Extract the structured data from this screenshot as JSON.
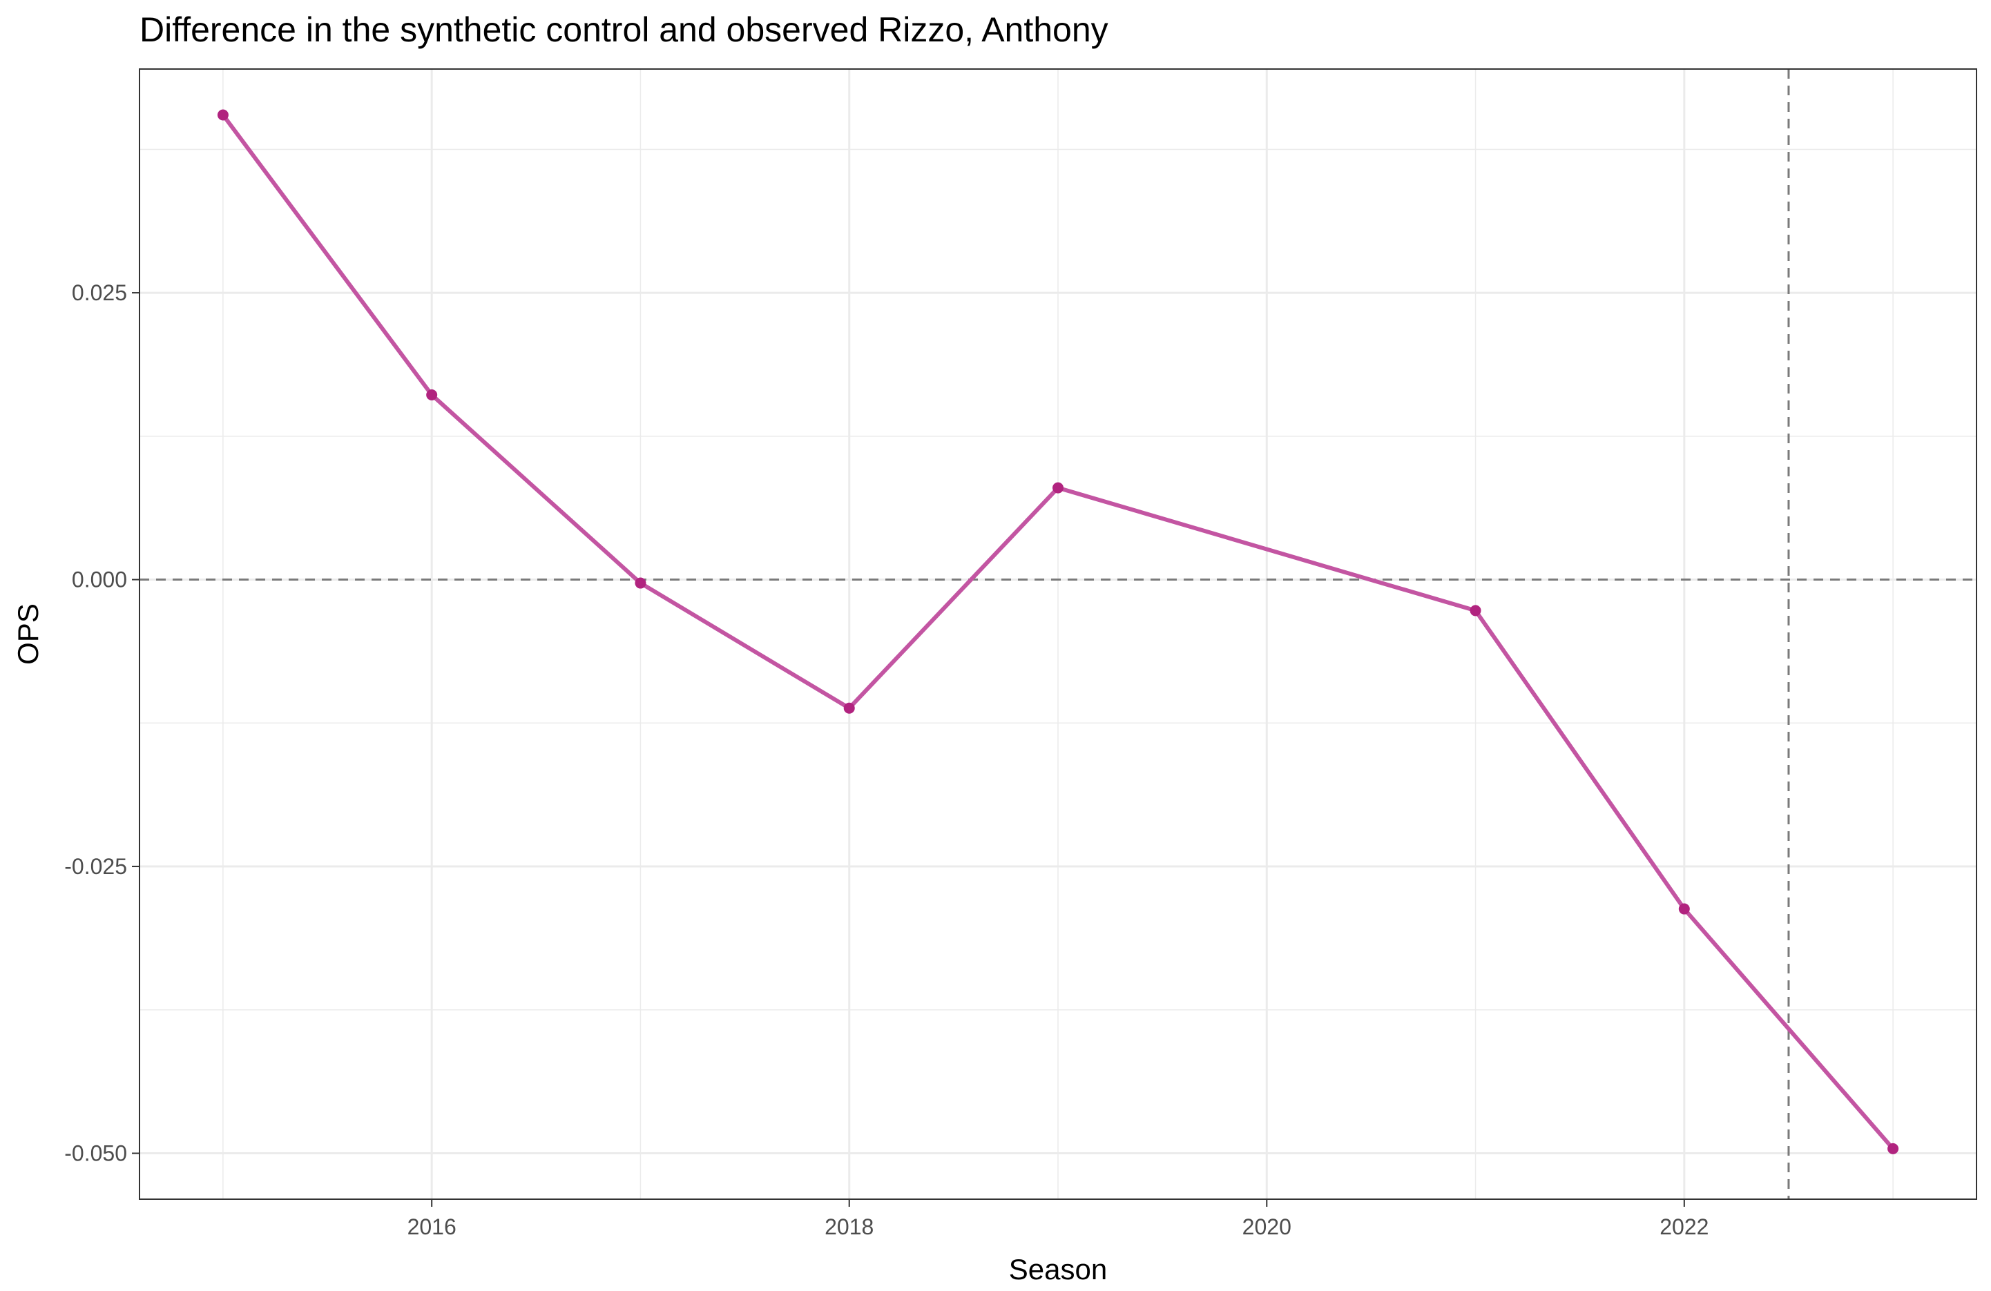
{
  "chart_data": {
    "type": "line",
    "title": "Difference in the synthetic control and observed Rizzo, Anthony",
    "xlabel": "Season",
    "ylabel": "OPS",
    "x": [
      2015,
      2016,
      2017,
      2018,
      2019,
      2021,
      2022,
      2023
    ],
    "series": [
      {
        "values": [
          0.0405,
          0.0161,
          -0.0003,
          -0.0112,
          0.008,
          -0.0027,
          -0.0287,
          -0.0496
        ]
      }
    ],
    "xlim": [
      2014.6,
      2023.4
    ],
    "ylim": [
      -0.054,
      0.0445
    ],
    "x_ticks": [
      2016,
      2018,
      2020,
      2022
    ],
    "x_tick_labels": [
      "2016",
      "2018",
      "2020",
      "2022"
    ],
    "y_ticks": [
      0.025,
      0.0,
      -0.025,
      -0.05
    ],
    "y_tick_labels": [
      "0.025",
      "0.000",
      "-0.025",
      "-0.050"
    ],
    "reference_lines": {
      "horizontal_y": 0.0,
      "vertical_x": 2022.5,
      "style": "dashed"
    },
    "grid": true,
    "colors": {
      "line": "#c355a2",
      "points": "#b1237f",
      "reference": "#7a7a7a",
      "grid": "#ebebeb",
      "panel_border": "#333333"
    }
  }
}
